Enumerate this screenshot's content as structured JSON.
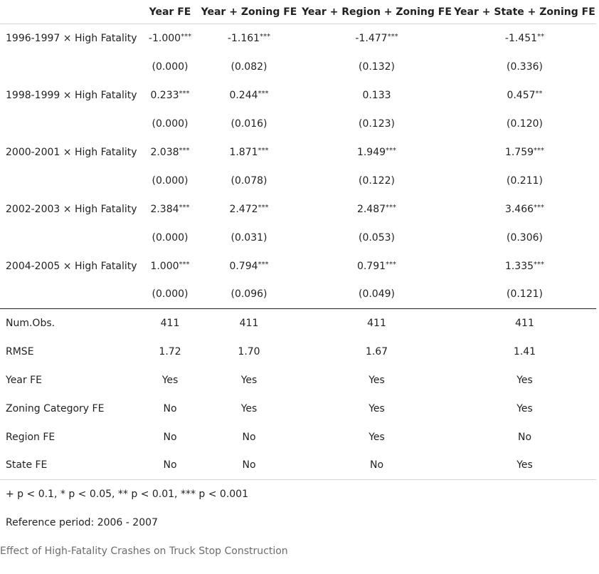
{
  "table": {
    "columns": [
      "",
      "Year FE",
      "Year + Zoning FE",
      "Year + Region + Zoning FE",
      "Year + State + Zoning FE"
    ],
    "coefficients": [
      {
        "term": "1996-1997 × High Fatality",
        "estimates": [
          "-1.000***",
          "-1.161***",
          "-1.477***",
          "-1.451**"
        ],
        "std_errors": [
          "(0.000)",
          "(0.082)",
          "(0.132)",
          "(0.336)"
        ]
      },
      {
        "term": "1998-1999 × High Fatality",
        "estimates": [
          "0.233***",
          "0.244***",
          "0.133",
          "0.457**"
        ],
        "std_errors": [
          "(0.000)",
          "(0.016)",
          "(0.123)",
          "(0.120)"
        ]
      },
      {
        "term": "2000-2001 × High Fatality",
        "estimates": [
          "2.038***",
          "1.871***",
          "1.949***",
          "1.759***"
        ],
        "std_errors": [
          "(0.000)",
          "(0.078)",
          "(0.122)",
          "(0.211)"
        ]
      },
      {
        "term": "2002-2003 × High Fatality",
        "estimates": [
          "2.384***",
          "2.472***",
          "2.487***",
          "3.466***"
        ],
        "std_errors": [
          "(0.000)",
          "(0.031)",
          "(0.053)",
          "(0.306)"
        ]
      },
      {
        "term": "2004-2005 × High Fatality",
        "estimates": [
          "1.000***",
          "0.794***",
          "0.791***",
          "1.335***"
        ],
        "std_errors": [
          "(0.000)",
          "(0.096)",
          "(0.049)",
          "(0.121)"
        ]
      }
    ],
    "gof": [
      {
        "label": "Num.Obs.",
        "values": [
          "411",
          "411",
          "411",
          "411"
        ]
      },
      {
        "label": "RMSE",
        "values": [
          "1.72",
          "1.70",
          "1.67",
          "1.41"
        ]
      },
      {
        "label": "Year FE",
        "values": [
          "Yes",
          "Yes",
          "Yes",
          "Yes"
        ]
      },
      {
        "label": "Zoning Category FE",
        "values": [
          "No",
          "Yes",
          "Yes",
          "Yes"
        ]
      },
      {
        "label": "Region FE",
        "values": [
          "No",
          "No",
          "Yes",
          "No"
        ]
      },
      {
        "label": "State FE",
        "values": [
          "No",
          "No",
          "No",
          "Yes"
        ]
      }
    ]
  },
  "notes": {
    "significance": "+ p < 0.1, * p < 0.05, ** p < 0.01, *** p < 0.001",
    "reference": "Reference period: 2006 - 2007"
  },
  "caption": "Effect of High-Fatality Crashes on Truck Stop Construction"
}
